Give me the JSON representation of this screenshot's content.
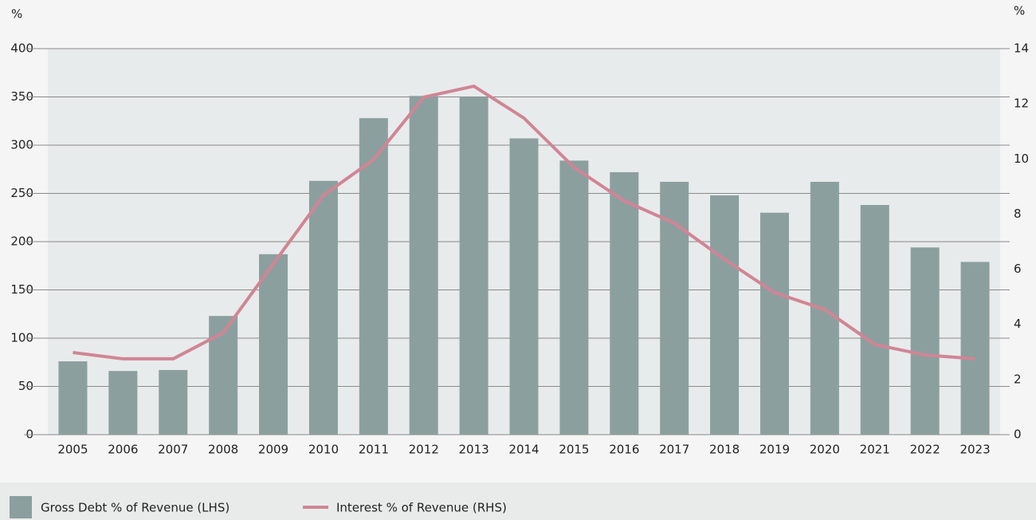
{
  "chart_data": {
    "type": "bar-line",
    "ylabel": "%",
    "y2label": "%",
    "categories": [
      "2005",
      "2006",
      "2007",
      "2008",
      "2009",
      "2010",
      "2011",
      "2012",
      "2013",
      "2014",
      "2015",
      "2016",
      "2017",
      "2018",
      "2019",
      "2020",
      "2021",
      "2022",
      "2023"
    ],
    "series": [
      {
        "name": "Gross Debt % of Revenue (LHS)",
        "type": "bar",
        "color": "#8c9f9f",
        "values": [
          76,
          66,
          67,
          123,
          187,
          263,
          328,
          351,
          350,
          307,
          284,
          272,
          262,
          248,
          230,
          262,
          238,
          194,
          179
        ]
      },
      {
        "name": "Interest % of Revenue (RHS)",
        "type": "line",
        "axis": "y2",
        "color": "#d08595",
        "values": [
          2.98,
          2.75,
          2.75,
          3.7,
          6.2,
          8.68,
          9.98,
          12.24,
          12.64,
          11.48,
          9.69,
          8.48,
          7.67,
          6.36,
          5.15,
          4.54,
          3.27,
          2.89,
          2.75
        ]
      }
    ],
    "ylim": [
      0,
      400
    ],
    "yticks": [
      0,
      50,
      100,
      150,
      200,
      250,
      300,
      350,
      400
    ],
    "y2lim": [
      0,
      14
    ],
    "y2ticks": [
      0,
      2,
      4,
      6,
      8,
      10,
      12,
      14
    ],
    "grid": true,
    "legend": "bottom"
  }
}
